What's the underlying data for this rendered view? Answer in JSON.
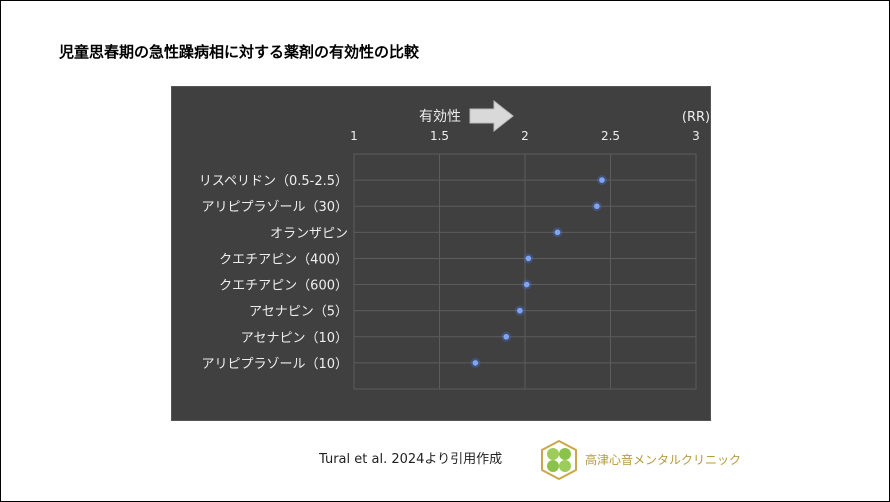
{
  "title": "児童思春期の急性躁病相に対する薬剤の有効性の比較",
  "citation": "Tural et al. 2024より引用作成",
  "clinic_name": "高津心音メンタルクリニック",
  "colors": {
    "chart_bg": "#404040",
    "point": "#7fa4f0",
    "grid": "#5c5c5c",
    "clinic_text": "#b59a3e"
  },
  "chart_data": {
    "type": "scatter",
    "title": "",
    "arrow_label": "有効性",
    "unit_label": "(RR)",
    "xlim": [
      1,
      3
    ],
    "xticks": [
      "1",
      "1.5",
      "2",
      "2.5",
      "3"
    ],
    "x_axis_position": "top",
    "grid": true,
    "categories": [
      "リスペリドン（0.5-2.5）",
      "アリピプラゾール（30）",
      "オランザピン",
      "クエチアピン（400）",
      "クエチアピン（600）",
      "アセナピン（5）",
      "アセナピン（10）",
      "アリピプラゾール（10）"
    ],
    "values": [
      2.45,
      2.42,
      2.19,
      2.02,
      2.01,
      1.97,
      1.89,
      1.71
    ]
  }
}
